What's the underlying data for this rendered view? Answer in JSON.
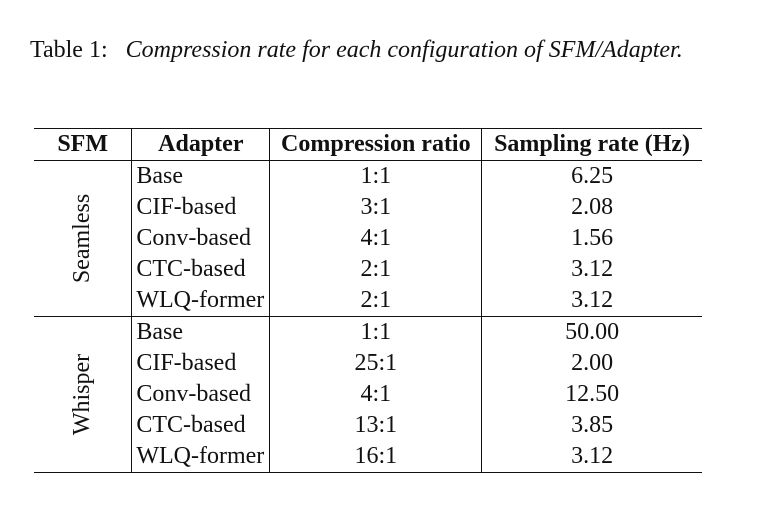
{
  "caption": {
    "label": "Table 1:",
    "text": "Compression rate for each configuration of SFM/Adapter."
  },
  "table": {
    "headers": {
      "sfm": "SFM",
      "adapter": "Adapter",
      "ratio": "Compression ratio",
      "rate": "Sampling rate (Hz)"
    },
    "groups": [
      {
        "sfm": "Seamless",
        "rows": [
          {
            "adapter": "Base",
            "ratio": "1:1",
            "rate": "6.25"
          },
          {
            "adapter": "CIF-based",
            "ratio": "3:1",
            "rate": "2.08"
          },
          {
            "adapter": "Conv-based",
            "ratio": "4:1",
            "rate": "1.56"
          },
          {
            "adapter": "CTC-based",
            "ratio": "2:1",
            "rate": "3.12"
          },
          {
            "adapter": "WLQ-former",
            "ratio": "2:1",
            "rate": "3.12"
          }
        ]
      },
      {
        "sfm": "Whisper",
        "rows": [
          {
            "adapter": "Base",
            "ratio": "1:1",
            "rate": "50.00"
          },
          {
            "adapter": "CIF-based",
            "ratio": "25:1",
            "rate": "2.00"
          },
          {
            "adapter": "Conv-based",
            "ratio": "4:1",
            "rate": "12.50"
          },
          {
            "adapter": "CTC-based",
            "ratio": "13:1",
            "rate": "3.85"
          },
          {
            "adapter": "WLQ-former",
            "ratio": "16:1",
            "rate": "3.12"
          }
        ]
      }
    ]
  }
}
